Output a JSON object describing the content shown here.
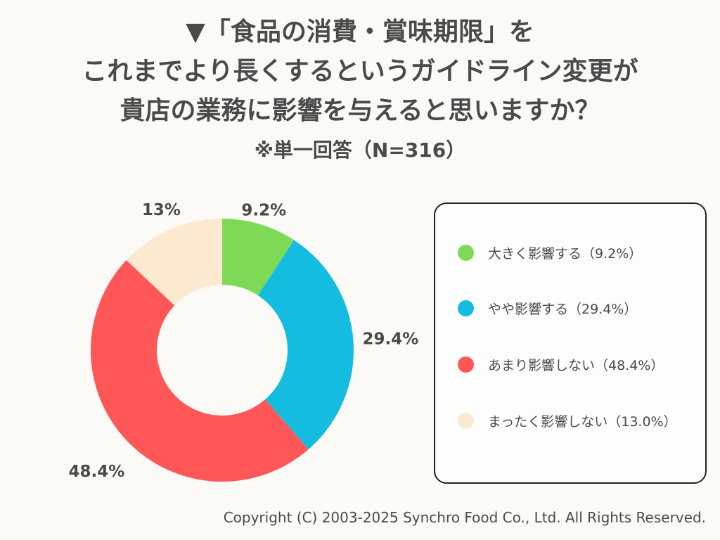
{
  "title_lines": [
    "▼「食品の消費・賞味期限」を",
    "これまでより長くするというガイドライン変更が",
    "貴店の業務に影響を与えると思いますか？"
  ],
  "subtitle": "※単一回答（N=316）",
  "chart_data": {
    "type": "pie",
    "donut": true,
    "categories": [
      "大きく影響する",
      "やや影響する",
      "あまり影響しない",
      "まったく影響しない"
    ],
    "values": [
      9.2,
      29.4,
      48.4,
      13.0
    ],
    "data_labels": [
      "9.2%",
      "29.4%",
      "48.4%",
      "13%"
    ],
    "colors": [
      "#7ed957",
      "#14bde0",
      "#ff5757",
      "#fde9d0"
    ],
    "legend_placement": "right",
    "legend": [
      "大きく影響する（9.2%）",
      "やや影響する（29.4%）",
      "あまり影響しない（48.4%）",
      "まったく影響しない（13.0%）"
    ]
  },
  "copyright": "Copyright (C) 2003-2025  Synchro Food Co., Ltd. All Rights Reserved."
}
